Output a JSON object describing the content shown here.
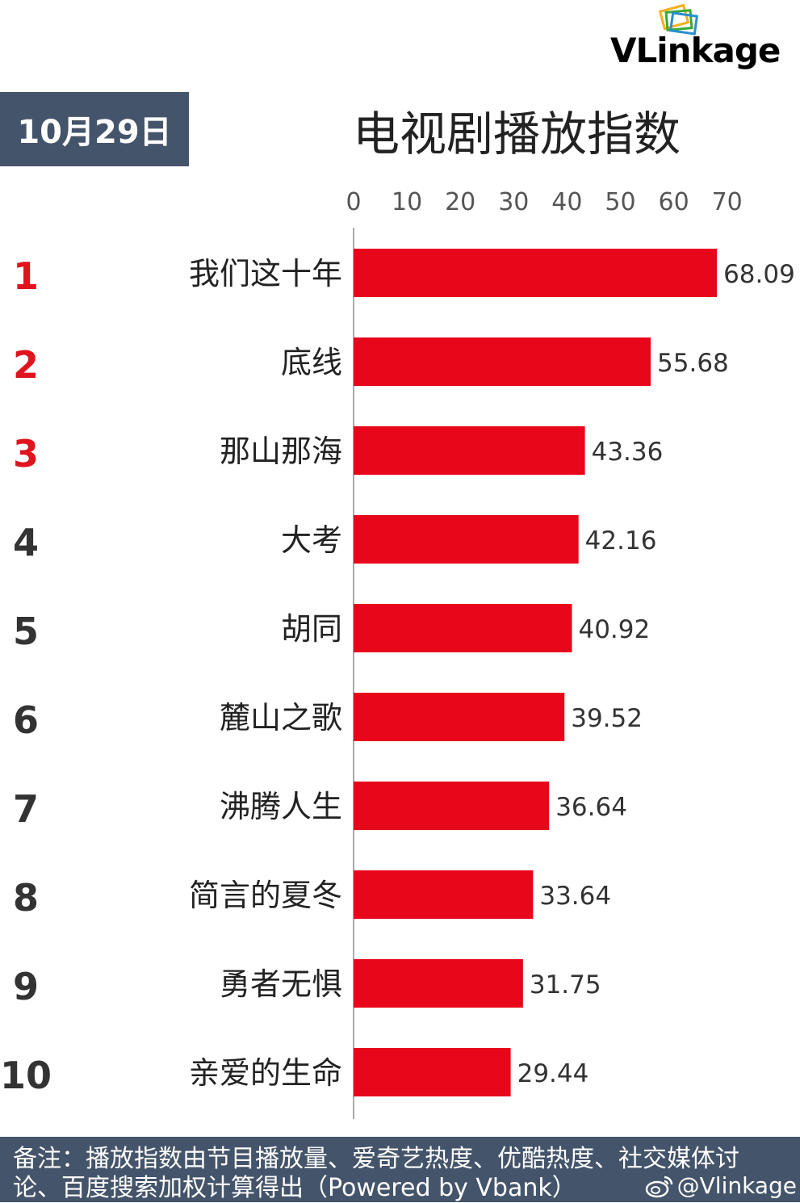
{
  "date_label": "10月29日",
  "title": "电视剧播放指数",
  "logo": {
    "brand": "VLinkage"
  },
  "footer": {
    "note": "备注：播放指数由节目播放量、爱奇艺热度、优酷热度、社交媒体讨论、百度搜索加权计算得出（Powered by Vbank）",
    "handle": "@Vlinkage"
  },
  "colors": {
    "bar": "#e8061a",
    "rank_top": "#e0141e",
    "rank_rest": "#333333",
    "header_bg": "#44546a"
  },
  "chart_data": {
    "type": "bar",
    "orientation": "horizontal",
    "title": "电视剧播放指数",
    "xlim": [
      0,
      70
    ],
    "xticks": [
      0,
      10,
      20,
      30,
      40,
      50,
      60,
      70
    ],
    "categories": [
      "我们这十年",
      "底线",
      "那山那海",
      "大考",
      "胡同",
      "麓山之歌",
      "沸腾人生",
      "简言的夏冬",
      "勇者无惧",
      "亲爱的生命"
    ],
    "ranks": [
      "1",
      "2",
      "3",
      "4",
      "5",
      "6",
      "7",
      "8",
      "9",
      "10"
    ],
    "values": [
      68.09,
      55.68,
      43.36,
      42.16,
      40.92,
      39.52,
      36.64,
      33.64,
      31.75,
      29.44
    ],
    "value_labels": [
      "68.09",
      "55.68",
      "43.36",
      "42.16",
      "40.92",
      "39.52",
      "36.64",
      "33.64",
      "31.75",
      "29.44"
    ],
    "grid": false,
    "legend": "none"
  }
}
